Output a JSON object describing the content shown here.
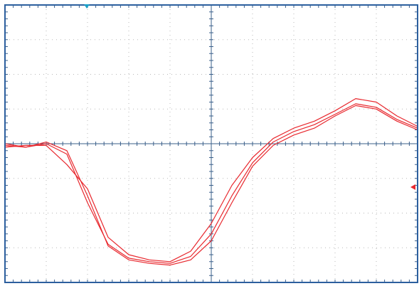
{
  "chart_data": {
    "type": "line",
    "x": [
      0,
      0.5,
      1,
      1.5,
      2,
      2.5,
      3,
      3.5,
      4,
      4.5,
      5,
      5.5,
      6,
      6.5,
      7,
      7.5,
      8,
      8.5,
      9,
      9.5,
      10
    ],
    "series": [
      {
        "color": "#e8282e",
        "values": [
          -0.05,
          -0.1,
          0,
          -0.3,
          -1.7,
          -2.9,
          -3.3,
          -3.4,
          -3.45,
          -3.25,
          -2.6,
          -1.5,
          -0.55,
          0.05,
          0.35,
          0.55,
          0.85,
          1.15,
          1.05,
          0.7,
          0.45
        ]
      },
      {
        "color": "#e8282e",
        "values": [
          -0.1,
          -0.05,
          -0.05,
          -0.6,
          -1.3,
          -2.7,
          -3.2,
          -3.35,
          -3.4,
          -3.1,
          -2.3,
          -1.2,
          -0.4,
          0.15,
          0.45,
          0.65,
          0.95,
          1.3,
          1.2,
          0.8,
          0.5
        ]
      },
      {
        "color": "#e8282e",
        "values": [
          0,
          -0.1,
          0.05,
          -0.2,
          -1.5,
          -2.95,
          -3.35,
          -3.45,
          -3.5,
          -3.35,
          -2.8,
          -1.7,
          -0.65,
          -0.05,
          0.25,
          0.45,
          0.8,
          1.1,
          1.0,
          0.65,
          0.4
        ]
      }
    ],
    "xlim": [
      0,
      10
    ],
    "ylim": [
      -4,
      4
    ],
    "xticks": [
      0,
      1,
      2,
      3,
      4,
      5,
      6,
      7,
      8,
      9,
      10
    ],
    "yticks": [
      -4,
      -3,
      -2,
      -1,
      0,
      1,
      2,
      3,
      4
    ],
    "grid": true
  }
}
